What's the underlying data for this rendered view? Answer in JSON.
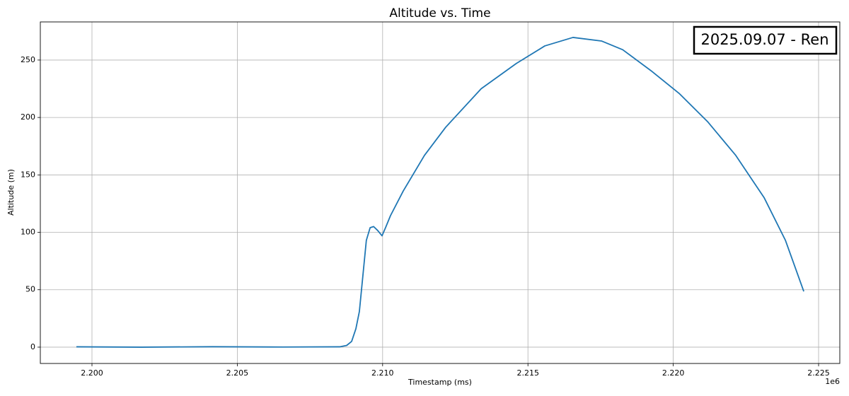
{
  "chart_data": {
    "type": "line",
    "title": "Altitude vs. Time",
    "x_label": "Timestamp (ms)",
    "y_label": "Altitude (m)",
    "x_offset_label": "1e6",
    "annotation": "2025.09.07 - Ren",
    "color": "#1f77b4",
    "grid": true,
    "x": [
      2199464,
      2201704,
      2204138,
      2206572,
      2208520,
      2208763,
      2208934,
      2209080,
      2209200,
      2209320,
      2209440,
      2209570,
      2209690,
      2209830,
      2209980,
      2210100,
      2210270,
      2210710,
      2211440,
      2212170,
      2213390,
      2214600,
      2215580,
      2216550,
      2217530,
      2218260,
      2219230,
      2220200,
      2221180,
      2222150,
      2223130,
      2223860,
      2224490
    ],
    "values": [
      0.3,
      0,
      0.4,
      0.1,
      0.3,
      1.5,
      5,
      16,
      31,
      62,
      93,
      104,
      105,
      101.6,
      97,
      104,
      114.5,
      136,
      167,
      191.5,
      225,
      247,
      262.3,
      269.7,
      266.6,
      259,
      240.8,
      221,
      196.4,
      167,
      130,
      93,
      48.6
    ],
    "xlim": [
      2198223,
      2225730
    ],
    "ylim": [
      -14.2,
      283.2
    ],
    "xticks": [
      {
        "value": 2200000,
        "label": "2.200"
      },
      {
        "value": 2205000,
        "label": "2.205"
      },
      {
        "value": 2210000,
        "label": "2.210"
      },
      {
        "value": 2215000,
        "label": "2.215"
      },
      {
        "value": 2220000,
        "label": "2.220"
      },
      {
        "value": 2225000,
        "label": "2.225"
      }
    ],
    "yticks": [
      0,
      50,
      100,
      150,
      200,
      250
    ]
  }
}
